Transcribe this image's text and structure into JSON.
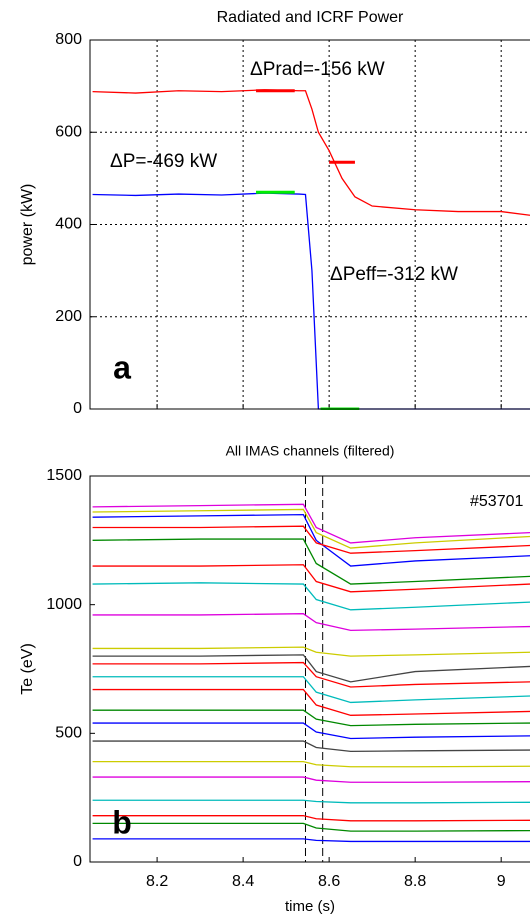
{
  "chart_data": [
    {
      "type": "line",
      "title": "Radiated and ICRF Power",
      "ylabel": "power (kW)",
      "panel_label": "a",
      "xlim": [
        8.044,
        9.067
      ],
      "ylim": [
        0,
        800
      ],
      "yticks": [
        0,
        200,
        400,
        600,
        800
      ],
      "xticks": [
        8.2,
        8.4,
        8.6,
        8.8,
        9
      ],
      "grid": true,
      "x": [
        8.05,
        8.15,
        8.25,
        8.35,
        8.45,
        8.53,
        8.545,
        8.56,
        8.575,
        8.6,
        8.63,
        8.66,
        8.7,
        8.8,
        8.9,
        9.0,
        9.067
      ],
      "series": [
        {
          "name": "ΔPrad=-156 kW",
          "color": "#ff0000",
          "values": [
            688,
            685,
            690,
            688,
            692,
            690,
            690,
            650,
            600,
            560,
            500,
            460,
            440,
            432,
            428,
            428,
            420
          ]
        },
        {
          "name": "ΔP=-469 kW",
          "color": "#0000ff",
          "values": [
            465,
            463,
            466,
            464,
            468,
            466,
            465,
            300,
            0,
            0,
            0,
            0,
            0,
            0,
            0,
            0,
            0
          ]
        }
      ],
      "segments": [
        {
          "color": "#ff0000",
          "x": [
            8.43,
            8.52
          ],
          "y": 690
        },
        {
          "color": "#ff0000",
          "x": [
            8.6,
            8.66
          ],
          "y": 535
        },
        {
          "color": "#00ee00",
          "x": [
            8.43,
            8.52
          ],
          "y": 470
        },
        {
          "color": "#00ee00",
          "x": [
            8.58,
            8.67
          ],
          "y": 0
        }
      ],
      "annotation": "ΔPeff=-312 kW"
    },
    {
      "type": "line",
      "title": "All IMAS channels (filtered)",
      "ylabel": "Te (eV)",
      "xlabel": "time (s)",
      "panel_label": "b",
      "annotation": "#53701",
      "xlim": [
        8.044,
        9.067
      ],
      "ylim": [
        0,
        1500
      ],
      "yticks": [
        0,
        500,
        1000,
        1500
      ],
      "xticks": [
        8.2,
        8.4,
        8.6,
        8.8,
        9
      ],
      "grid": false,
      "markers": [
        8.545,
        8.585
      ],
      "x": [
        8.05,
        8.3,
        8.54,
        8.57,
        8.65,
        8.8,
        9.067
      ],
      "series": [
        {
          "color": "#dd00dd",
          "values": [
            1380,
            1385,
            1390,
            1300,
            1240,
            1260,
            1280
          ]
        },
        {
          "color": "#cccc00",
          "values": [
            1360,
            1365,
            1370,
            1280,
            1220,
            1240,
            1265
          ]
        },
        {
          "color": "#0000ff",
          "values": [
            1340,
            1345,
            1350,
            1250,
            1150,
            1170,
            1190
          ]
        },
        {
          "color": "#ff0000",
          "values": [
            1300,
            1300,
            1305,
            1240,
            1200,
            1210,
            1230
          ]
        },
        {
          "color": "#008800",
          "values": [
            1250,
            1255,
            1255,
            1160,
            1080,
            1090,
            1110
          ]
        },
        {
          "color": "#ff0000",
          "values": [
            1150,
            1150,
            1155,
            1090,
            1050,
            1060,
            1080
          ]
        },
        {
          "color": "#00bbbb",
          "values": [
            1080,
            1085,
            1080,
            1020,
            980,
            990,
            1010
          ]
        },
        {
          "color": "#dd00dd",
          "values": [
            960,
            960,
            965,
            930,
            900,
            905,
            915
          ]
        },
        {
          "color": "#cccc00",
          "values": [
            830,
            830,
            835,
            815,
            800,
            805,
            815
          ]
        },
        {
          "color": "#444444",
          "values": [
            800,
            800,
            805,
            740,
            700,
            740,
            760
          ]
        },
        {
          "color": "#ff0000",
          "values": [
            770,
            770,
            775,
            720,
            680,
            690,
            700
          ]
        },
        {
          "color": "#00bbbb",
          "values": [
            720,
            720,
            720,
            660,
            620,
            630,
            645
          ]
        },
        {
          "color": "#ff0000",
          "values": [
            670,
            670,
            670,
            610,
            570,
            575,
            585
          ]
        },
        {
          "color": "#008800",
          "values": [
            590,
            590,
            590,
            555,
            530,
            535,
            540
          ]
        },
        {
          "color": "#0000ff",
          "values": [
            540,
            540,
            540,
            505,
            480,
            485,
            490
          ]
        },
        {
          "color": "#444444",
          "values": [
            470,
            470,
            470,
            445,
            430,
            432,
            435
          ]
        },
        {
          "color": "#cccc00",
          "values": [
            390,
            390,
            390,
            378,
            370,
            370,
            372
          ]
        },
        {
          "color": "#dd00dd",
          "values": [
            330,
            330,
            330,
            318,
            310,
            310,
            312
          ]
        },
        {
          "color": "#00bbbb",
          "values": [
            240,
            240,
            240,
            235,
            230,
            230,
            232
          ]
        },
        {
          "color": "#ff0000",
          "values": [
            180,
            180,
            180,
            168,
            160,
            160,
            162
          ]
        },
        {
          "color": "#008800",
          "values": [
            150,
            150,
            150,
            132,
            120,
            120,
            122
          ]
        },
        {
          "color": "#0000ff",
          "values": [
            90,
            90,
            90,
            84,
            80,
            80,
            80
          ]
        }
      ]
    }
  ]
}
